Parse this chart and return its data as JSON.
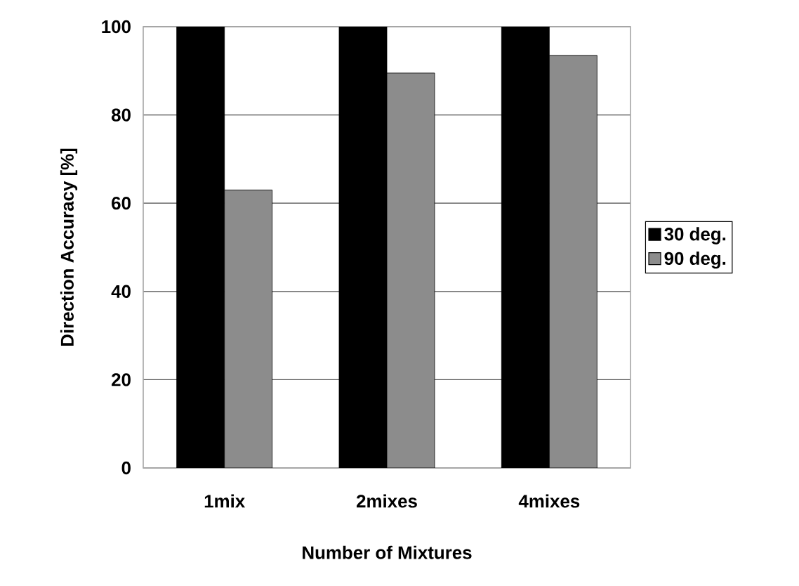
{
  "chart_data": {
    "type": "bar",
    "xlabel": "Number of Mixtures",
    "ylabel": "Direction Accuracy [%]",
    "categories": [
      "1mix",
      "2mixes",
      "4mixes"
    ],
    "series": [
      {
        "name": "30 deg.",
        "color": "#000000",
        "values": [
          100,
          100,
          100
        ]
      },
      {
        "name": "90 deg.",
        "color": "#8c8c8c",
        "values": [
          63,
          89.5,
          93.5
        ]
      }
    ],
    "ylim": [
      0,
      100
    ],
    "yticks": [
      0,
      20,
      40,
      60,
      80,
      100
    ],
    "grid": "y",
    "legend": "right"
  }
}
